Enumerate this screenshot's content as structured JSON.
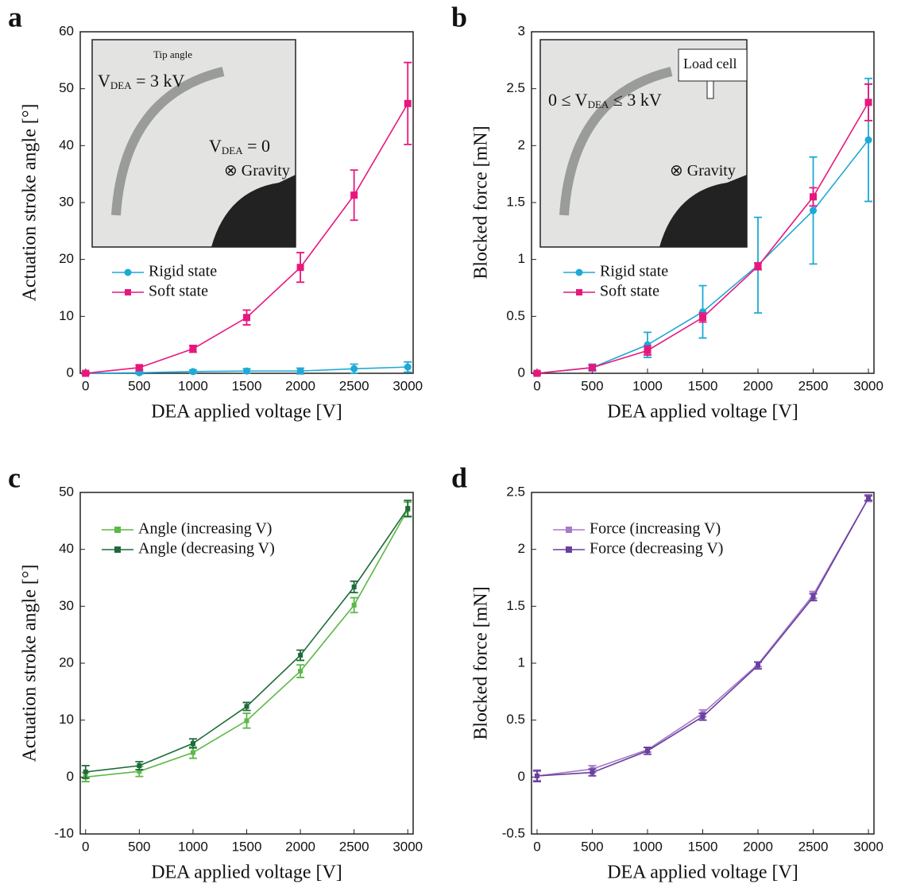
{
  "chart_data": [
    {
      "type": "line",
      "panel": "a",
      "xlabel": "DEA applied voltage [V]",
      "ylabel": "Actuation stroke angle [°]",
      "x": [
        0,
        500,
        1000,
        1500,
        2000,
        2500,
        3000
      ],
      "xlim": [
        -50,
        3050
      ],
      "xticks": [
        0,
        500,
        1000,
        1500,
        2000,
        2500,
        3000
      ],
      "ylim": [
        0,
        60
      ],
      "yticks": [
        0,
        10,
        20,
        30,
        40,
        50,
        60
      ],
      "legend": "lower-left",
      "inset": {
        "labels": [
          {
            "text": "Tip angle"
          },
          {
            "text": "V",
            "sub": "DEA",
            "rest": " = 3 kV"
          },
          {
            "text": "V",
            "sub": "DEA",
            "rest": " = 0"
          },
          {
            "text": "⊗ Gravity"
          }
        ]
      },
      "series": [
        {
          "name": "Rigid state",
          "color": "#1ea9d6",
          "marker": "circle",
          "values": [
            0,
            0.1,
            0.3,
            0.4,
            0.4,
            0.8,
            1.1
          ],
          "errors": [
            0.2,
            0.2,
            0.3,
            0.4,
            0.5,
            0.8,
            0.9
          ]
        },
        {
          "name": "Soft state",
          "color": "#e8177d",
          "marker": "square",
          "values": [
            0,
            1.0,
            4.3,
            9.8,
            18.6,
            31.3,
            47.4
          ],
          "errors": [
            0.2,
            0.4,
            0.6,
            1.3,
            2.6,
            4.4,
            7.2
          ]
        }
      ]
    },
    {
      "type": "line",
      "panel": "b",
      "xlabel": "DEA applied voltage [V]",
      "ylabel": "Blocked force [mN]",
      "x": [
        0,
        500,
        1000,
        1500,
        2000,
        2500,
        3000
      ],
      "xlim": [
        -50,
        3050
      ],
      "xticks": [
        0,
        500,
        1000,
        1500,
        2000,
        2500,
        3000
      ],
      "ylim": [
        0,
        3
      ],
      "yticks": [
        0,
        0.5,
        1,
        1.5,
        2,
        2.5,
        3
      ],
      "legend": "lower-left",
      "inset": {
        "labels": [
          {
            "text": "Load cell"
          },
          {
            "text": "0 ≤ V",
            "sub": "DEA",
            "rest": " ≤ 3 kV"
          },
          {
            "text": "⊗ Gravity"
          }
        ]
      },
      "series": [
        {
          "name": "Rigid state",
          "color": "#1ea9d6",
          "marker": "circle",
          "values": [
            0,
            0.05,
            0.25,
            0.54,
            0.95,
            1.43,
            2.05
          ],
          "errors": [
            0.01,
            0.03,
            0.11,
            0.23,
            0.42,
            0.47,
            0.54
          ]
        },
        {
          "name": "Soft state",
          "color": "#e8177d",
          "marker": "square",
          "values": [
            0,
            0.05,
            0.2,
            0.49,
            0.94,
            1.55,
            2.38
          ],
          "errors": [
            0.01,
            0.02,
            0.04,
            0.04,
            0.03,
            0.08,
            0.16
          ]
        }
      ]
    },
    {
      "type": "line",
      "panel": "c",
      "xlabel": "DEA applied voltage [V]",
      "ylabel": "Actuation stroke angle [°]",
      "x": [
        0,
        500,
        1000,
        1500,
        2000,
        2500,
        3000
      ],
      "xlim": [
        -50,
        3050
      ],
      "xticks": [
        0,
        500,
        1000,
        1500,
        2000,
        2500,
        3000
      ],
      "ylim": [
        -10,
        50
      ],
      "yticks": [
        -10,
        0,
        10,
        20,
        30,
        40,
        50
      ],
      "legend": "upper-left",
      "series": [
        {
          "name": "Angle (increasing V)",
          "color": "#5cb946",
          "marker": "square",
          "values": [
            0,
            1,
            4.3,
            9.9,
            18.6,
            30.2,
            47
          ],
          "errors": [
            0.8,
            0.9,
            1,
            1.3,
            1.1,
            1.3,
            1.3
          ]
        },
        {
          "name": "Angle (decreasing V)",
          "color": "#1e6b3a",
          "marker": "square",
          "values": [
            0.9,
            2,
            5.9,
            12.4,
            21.4,
            33.4,
            47.2
          ],
          "errors": [
            1.1,
            0.7,
            0.8,
            0.7,
            0.9,
            1,
            1.4
          ]
        }
      ]
    },
    {
      "type": "line",
      "panel": "d",
      "xlabel": "DEA applied voltage [V]",
      "ylabel": "Blocked force [mN]",
      "x": [
        0,
        500,
        1000,
        1500,
        2000,
        2500,
        3000
      ],
      "xlim": [
        -50,
        3050
      ],
      "xticks": [
        0,
        500,
        1000,
        1500,
        2000,
        2500,
        3000
      ],
      "ylim": [
        -0.5,
        2.5
      ],
      "yticks": [
        -0.5,
        0,
        0.5,
        1,
        1.5,
        2,
        2.5
      ],
      "legend": "upper-left",
      "series": [
        {
          "name": "Force (increasing V)",
          "color": "#a67bc9",
          "marker": "square",
          "values": [
            0.01,
            0.07,
            0.24,
            0.56,
            0.99,
            1.6,
            2.45
          ],
          "errors": [
            0.04,
            0.03,
            0.02,
            0.03,
            0.02,
            0.03,
            0.03
          ]
        },
        {
          "name": "Force (decreasing V)",
          "color": "#6a3fa0",
          "marker": "square",
          "values": [
            0.01,
            0.04,
            0.23,
            0.53,
            0.98,
            1.58,
            2.45
          ],
          "errors": [
            0.05,
            0.03,
            0.03,
            0.03,
            0.03,
            0.03,
            0.02
          ]
        }
      ]
    }
  ]
}
